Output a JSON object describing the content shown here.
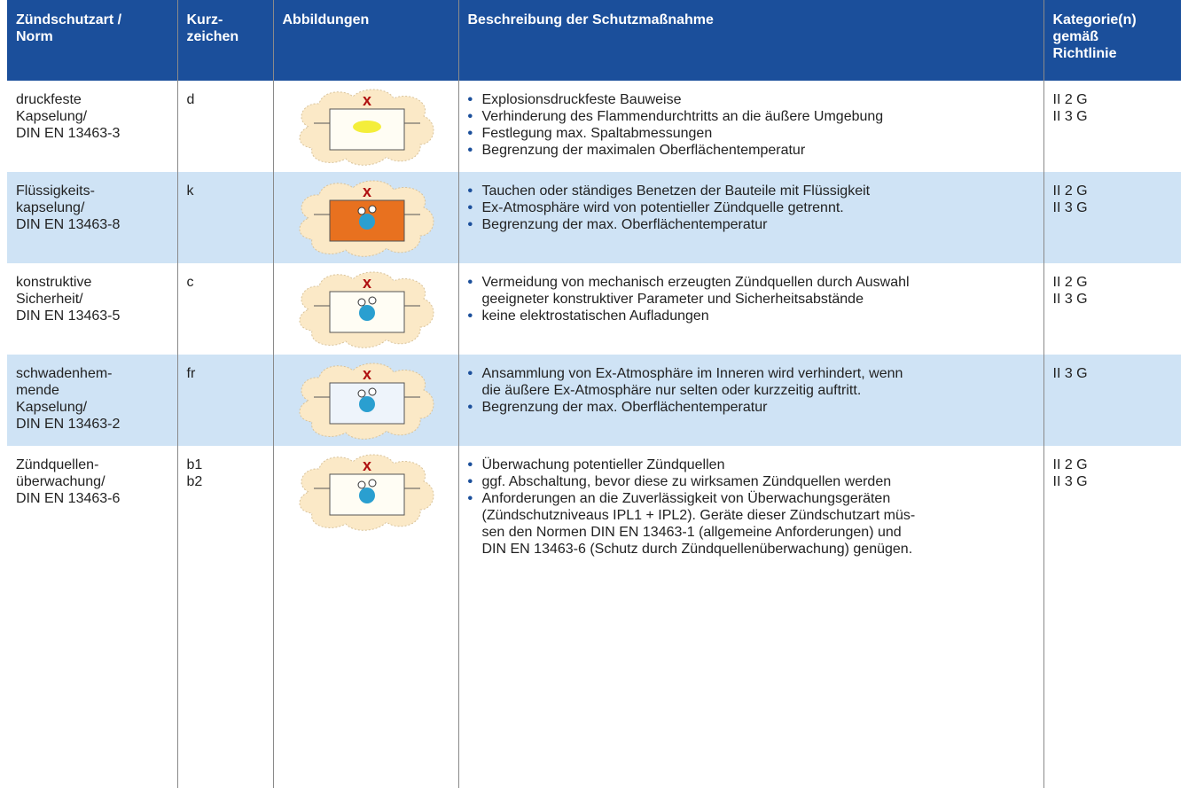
{
  "table": {
    "header": [
      "Zündschutzart /\nNorm",
      "Kurz-\nzeichen",
      "Abbildungen",
      "Beschreibung der Schutzmaßnahme",
      "Kategorie(n)\ngemäß\nRichtlinie"
    ],
    "rows": [
      {
        "norm": "druckfeste\nKapselung/\nDIN EN 13463-3",
        "code": "d",
        "bullets": [
          "Explosionsdruckfeste Bauweise",
          "Verhinderung des Flammendurchtritts an die äußere Umgebung",
          "Festlegung max. Spaltabmessungen",
          "Begrenzung der maximalen Oberflächentemperatur"
        ],
        "categories": "II 2 G\nII 3 G"
      },
      {
        "norm": "Flüssigkeits-\nkapselung/\nDIN EN 13463-8",
        "code": "k",
        "bullets": [
          "Tauchen oder ständiges Benetzen der Bauteile mit Flüssigkeit",
          "Ex-Atmosphäre wird von potentieller Zündquelle getrennt.",
          "Begrenzung der max. Oberflächentemperatur"
        ],
        "categories": "II 2 G\nII 3 G"
      },
      {
        "norm": "konstruktive\nSicherheit/\nDIN EN 13463-5",
        "code": "c",
        "bullets": [
          "Vermeidung von mechanisch erzeugten Zündquellen durch Auswahl\ngeeigneter konstruktiver Parameter und Sicherheitsabstände",
          "keine elektrostatischen Aufladungen"
        ],
        "categories": "II 2 G\nII 3 G"
      },
      {
        "norm": "schwadenhem-\nmende\nKapselung/\nDIN EN 13463-2",
        "code": "fr",
        "bullets": [
          "Ansammlung von Ex-Atmosphäre im Inneren wird verhindert, wenn\ndie äußere Ex-Atmosphäre nur selten oder kurzzeitig auftritt.",
          "Begrenzung der max. Oberflächentemperatur"
        ],
        "categories": "II 3 G"
      },
      {
        "norm": "Zündquellen-\nüberwachung/\nDIN EN 13463-6",
        "code": "b1\nb2",
        "bullets": [
          "Überwachung potentieller Zündquellen",
          "ggf. Abschaltung, bevor diese zu wirksamen Zündquellen werden",
          "Anforderungen an die Zuverlässigkeit von Überwachungsgeräten\n(Zündschutzniveaus IPL1 + IPL2). Geräte dieser Zündschutzart müs-\nsen den Normen DIN EN 13463-1 (allgemeine Anforderungen) und\nDIN EN 13463-6 (Schutz durch Zündquellenüberwachung) genügen."
        ],
        "categories": "II 2 G\nII 3 G"
      }
    ]
  }
}
